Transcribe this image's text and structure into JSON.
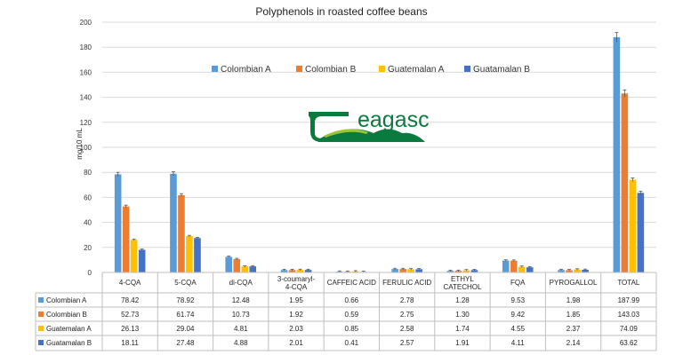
{
  "chart_data": {
    "type": "bar",
    "title": "Polyphenols in roasted coffee beans",
    "ylabel": "mg/10 mL",
    "xlabel": "",
    "ylim": [
      0,
      200
    ],
    "yticks": [
      0,
      20,
      40,
      60,
      80,
      100,
      120,
      140,
      160,
      180,
      200
    ],
    "grid": true,
    "legend_position": "top-center",
    "categories": [
      "4-CQA",
      "5-CQA",
      "di-CQA",
      "3-coumaryl-4-CQA",
      "CAFFEIC ACID",
      "FERULIC ACID",
      "ETHYL CATECHOL",
      "FQA",
      "PYROGALLOL",
      "TOTAL"
    ],
    "series": [
      {
        "name": "Colombian A",
        "color": "#5b9bd5",
        "values": [
          78.42,
          78.92,
          12.48,
          1.95,
          0.66,
          2.78,
          1.28,
          9.53,
          1.98,
          187.99
        ]
      },
      {
        "name": "Colombian B",
        "color": "#ed7d31",
        "values": [
          52.73,
          61.74,
          10.73,
          1.92,
          0.59,
          2.75,
          1.3,
          9.42,
          1.85,
          143.03
        ]
      },
      {
        "name": "Guatemalan A",
        "color": "#ffc000",
        "values": [
          26.13,
          29.04,
          4.81,
          2.03,
          0.85,
          2.58,
          1.74,
          4.55,
          2.37,
          74.09
        ]
      },
      {
        "name": "Guatamalan B",
        "color": "#4472c4",
        "values": [
          18.11,
          27.48,
          4.88,
          2.01,
          0.41,
          2.57,
          1.91,
          4.11,
          2.14,
          63.62
        ]
      }
    ],
    "table_rows": [
      {
        "label": "Colombian A",
        "cells": [
          "78.42",
          "78.92",
          "12.48",
          "1.95",
          "0.66",
          "2.78",
          "1.28",
          "9.53",
          "1.98",
          "187.99"
        ]
      },
      {
        "label": "Colombian B",
        "cells": [
          "52.73",
          "61.74",
          "10.73",
          "1.92",
          "0.59",
          "2.75",
          "1.30",
          "9.42",
          "1.85",
          "143.03"
        ]
      },
      {
        "label": "Guatemalan A",
        "cells": [
          "26.13",
          "29.04",
          "4.81",
          "2.03",
          "0.85",
          "2.58",
          "1.74",
          "4.55",
          "2.37",
          "74.09"
        ]
      },
      {
        "label": "Guatamalan B",
        "cells": [
          "18.11",
          "27.48",
          "4.88",
          "2.01",
          "0.41",
          "2.57",
          "1.91",
          "4.11",
          "2.14",
          "63.62"
        ]
      }
    ],
    "error_bars": true
  },
  "logo": {
    "text": "eagasc",
    "color": "#0a7a3e",
    "accent": "#9cc43a"
  }
}
